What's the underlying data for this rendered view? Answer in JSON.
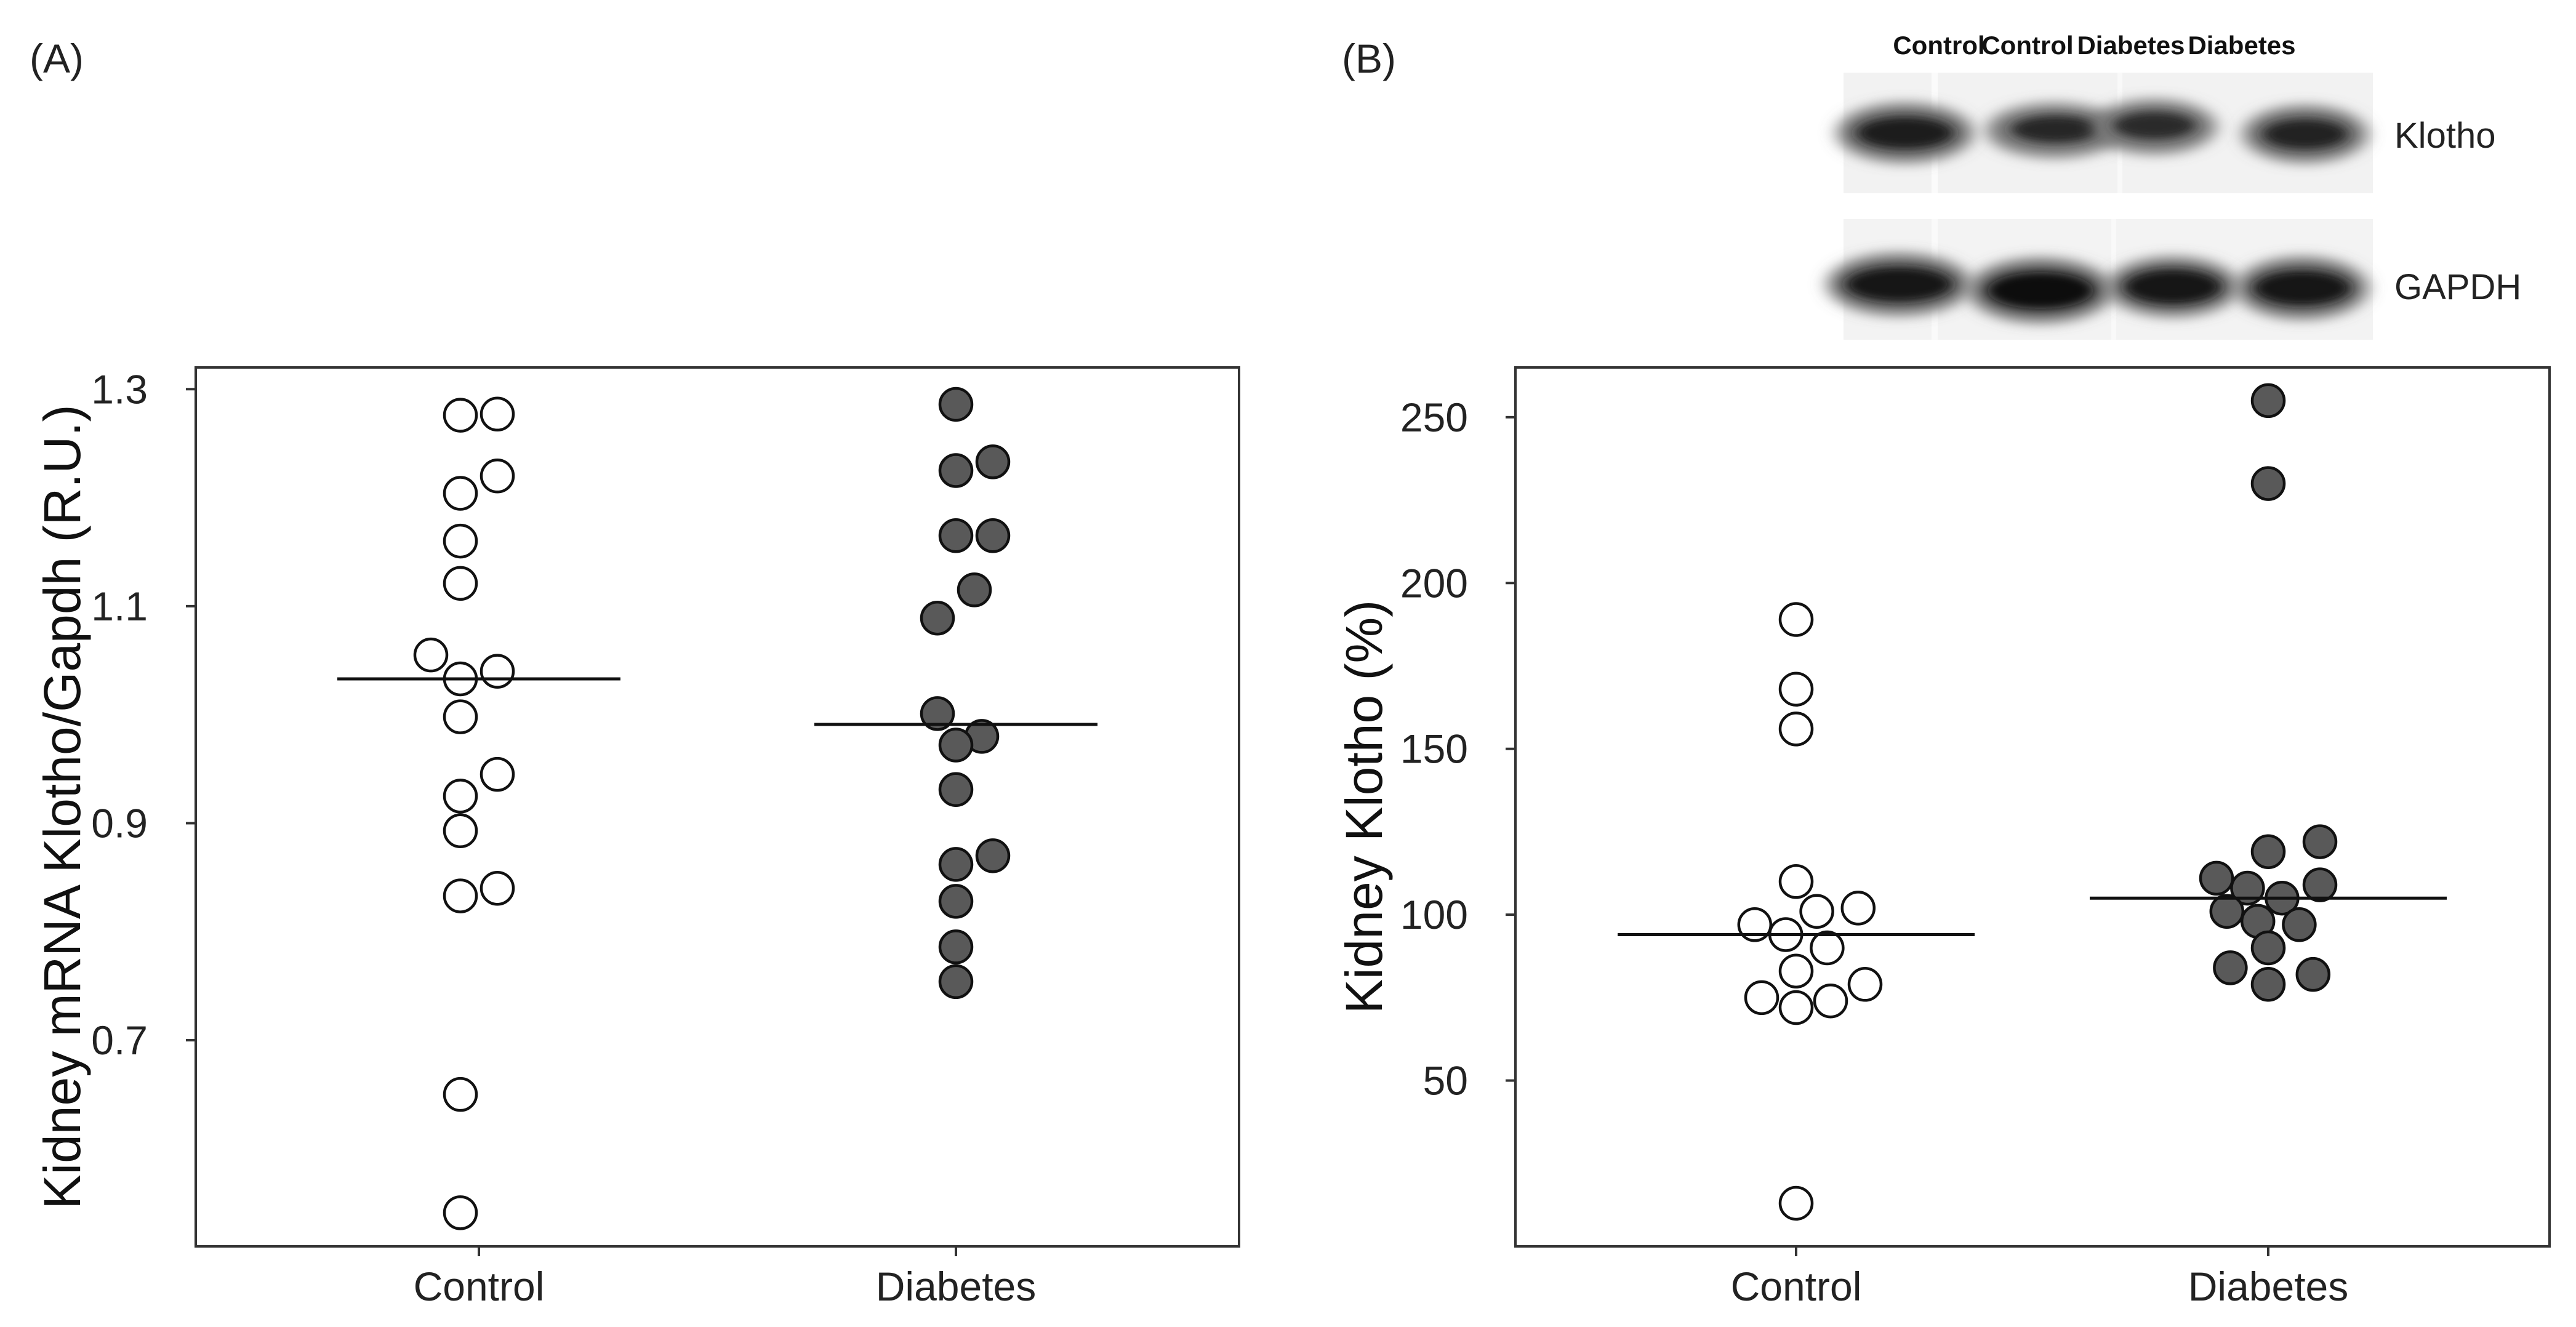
{
  "panel_labels": [
    "(A)",
    "(B)"
  ],
  "blot": {
    "lanes": [
      "Control",
      "Control",
      "Diabetes",
      "Diabetes"
    ],
    "bands": [
      "Klotho",
      "GAPDH"
    ]
  },
  "colors": {
    "control_fill": "#ffffff",
    "diabetes_fill": "#595959",
    "stroke": "#111111"
  },
  "chart_data": [
    {
      "type": "scatter",
      "panel": "(A)",
      "title": "",
      "xlabel": "",
      "ylabel": "Kidney mRNA Klotho/Gapdh (R.U.)",
      "categories": [
        "Control",
        "Diabetes"
      ],
      "ylim": [
        0.51,
        1.32
      ],
      "yticks": [
        0.7,
        0.9,
        1.1,
        1.3
      ],
      "ytick_labels": [
        "0.7",
        "0.9",
        "1.1",
        "1.3"
      ],
      "series": [
        {
          "name": "Control",
          "category": "Control",
          "fill": "#ffffff",
          "median": 1.033,
          "points": [
            {
              "y": 1.276,
              "jitter": -0.5
            },
            {
              "y": 1.277,
              "jitter": 0.5
            },
            {
              "y": 1.22,
              "jitter": 0.5
            },
            {
              "y": 1.204,
              "jitter": -0.5
            },
            {
              "y": 1.16,
              "jitter": -0.5
            },
            {
              "y": 1.121,
              "jitter": -0.5
            },
            {
              "y": 1.055,
              "jitter": -1.3
            },
            {
              "y": 1.04,
              "jitter": 0.5
            },
            {
              "y": 1.033,
              "jitter": -0.5
            },
            {
              "y": 0.998,
              "jitter": -0.5
            },
            {
              "y": 0.945,
              "jitter": 0.5
            },
            {
              "y": 0.925,
              "jitter": -0.5
            },
            {
              "y": 0.893,
              "jitter": -0.5
            },
            {
              "y": 0.84,
              "jitter": 0.5
            },
            {
              "y": 0.833,
              "jitter": -0.5
            },
            {
              "y": 0.65,
              "jitter": -0.5
            },
            {
              "y": 0.541,
              "jitter": -0.5
            }
          ]
        },
        {
          "name": "Diabetes",
          "category": "Diabetes",
          "fill": "#595959",
          "median": 0.991,
          "points": [
            {
              "y": 1.286,
              "jitter": 0.0
            },
            {
              "y": 1.233,
              "jitter": 1.0
            },
            {
              "y": 1.225,
              "jitter": 0.0
            },
            {
              "y": 1.165,
              "jitter": 0.0
            },
            {
              "y": 1.165,
              "jitter": 1.0
            },
            {
              "y": 1.115,
              "jitter": 0.5
            },
            {
              "y": 1.089,
              "jitter": -0.5
            },
            {
              "y": 1.001,
              "jitter": -0.5
            },
            {
              "y": 0.98,
              "jitter": 0.7
            },
            {
              "y": 0.972,
              "jitter": 0.0
            },
            {
              "y": 0.931,
              "jitter": 0.0
            },
            {
              "y": 0.87,
              "jitter": 1.0
            },
            {
              "y": 0.862,
              "jitter": 0.0
            },
            {
              "y": 0.828,
              "jitter": 0.0
            },
            {
              "y": 0.786,
              "jitter": 0.0
            },
            {
              "y": 0.754,
              "jitter": 0.0
            }
          ]
        }
      ]
    },
    {
      "type": "scatter",
      "panel": "(B)",
      "title": "",
      "xlabel": "",
      "ylabel": "Kidney Klotho (%)",
      "categories": [
        "Control",
        "Diabetes"
      ],
      "ylim": [
        0,
        265
      ],
      "yticks": [
        50,
        100,
        150,
        200,
        250
      ],
      "ytick_labels": [
        "50",
        "100",
        "150",
        "200",
        "250"
      ],
      "series": [
        {
          "name": "Control",
          "category": "Control",
          "fill": "#ffffff",
          "median": 94,
          "points": [
            {
              "y": 189,
              "jitter": 0.0
            },
            {
              "y": 168,
              "jitter": 0.0
            },
            {
              "y": 156,
              "jitter": 0.0
            },
            {
              "y": 110,
              "jitter": 0.0
            },
            {
              "y": 102,
              "jitter": 1.8
            },
            {
              "y": 101,
              "jitter": 0.6
            },
            {
              "y": 97,
              "jitter": -1.2
            },
            {
              "y": 94,
              "jitter": -0.3
            },
            {
              "y": 90,
              "jitter": 0.9
            },
            {
              "y": 83,
              "jitter": 0.0
            },
            {
              "y": 79,
              "jitter": 2.0
            },
            {
              "y": 75,
              "jitter": -1.0
            },
            {
              "y": 74,
              "jitter": 1.0
            },
            {
              "y": 72,
              "jitter": 0.0
            },
            {
              "y": 13,
              "jitter": 0.0
            }
          ]
        },
        {
          "name": "Diabetes",
          "category": "Diabetes",
          "fill": "#595959",
          "median": 105,
          "points": [
            {
              "y": 255,
              "jitter": 0.0
            },
            {
              "y": 230,
              "jitter": 0.0
            },
            {
              "y": 122,
              "jitter": 1.5
            },
            {
              "y": 119,
              "jitter": 0.0
            },
            {
              "y": 111,
              "jitter": -1.5
            },
            {
              "y": 109,
              "jitter": 1.5
            },
            {
              "y": 108,
              "jitter": -0.6
            },
            {
              "y": 105,
              "jitter": 0.4
            },
            {
              "y": 101,
              "jitter": -1.2
            },
            {
              "y": 98,
              "jitter": -0.3
            },
            {
              "y": 97,
              "jitter": 0.9
            },
            {
              "y": 90,
              "jitter": 0.0
            },
            {
              "y": 84,
              "jitter": -1.1
            },
            {
              "y": 82,
              "jitter": 1.3
            },
            {
              "y": 79,
              "jitter": 0.0
            }
          ]
        }
      ]
    }
  ]
}
